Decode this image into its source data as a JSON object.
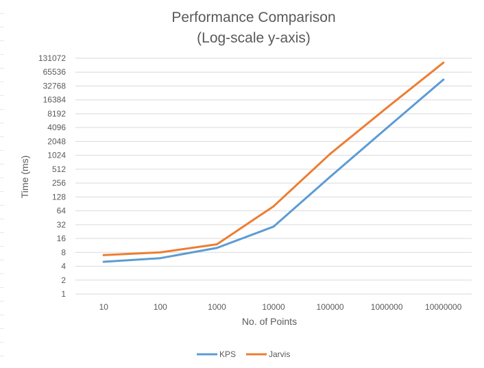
{
  "chart_data": {
    "type": "line",
    "title": [
      "Performance Comparison",
      "(Log-scale y-axis)"
    ],
    "xlabel": "No. of Points",
    "ylabel": "Time (ms)",
    "categories": [
      "10",
      "100",
      "1000",
      "10000",
      "100000",
      "1000000",
      "10000000"
    ],
    "y_scale": "log2",
    "y_ticks": [
      "1",
      "2",
      "4",
      "8",
      "16",
      "32",
      "64",
      "128",
      "256",
      "512",
      "1024",
      "2048",
      "4096",
      "8192",
      "16384",
      "32768",
      "65536",
      "131072"
    ],
    "ylim": [
      1,
      131072
    ],
    "grid": true,
    "legend_position": "bottom",
    "series": [
      {
        "name": "KPS",
        "color": "#5b9bd5",
        "values": [
          5,
          6,
          10,
          29,
          350,
          4000,
          45000
        ]
      },
      {
        "name": "Jarvis",
        "color": "#ed7d31",
        "values": [
          7,
          8,
          12,
          80,
          1100,
          11000,
          105000
        ]
      }
    ]
  }
}
